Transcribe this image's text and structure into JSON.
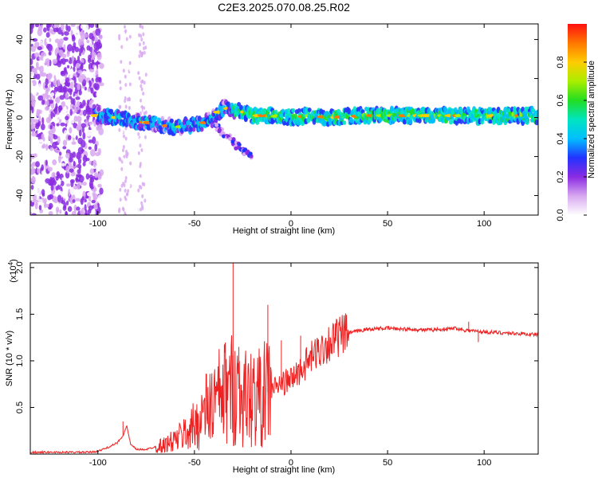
{
  "title": "C2E3.2025.070.08.25.R02",
  "chart_data": [
    {
      "type": "heatmap",
      "xlabel": "Height of straight line (km)",
      "ylabel": "Frequency (Hz)",
      "xlim": [
        -135,
        128
      ],
      "ylim": [
        -50,
        48
      ],
      "x_ticks": [
        -100,
        -50,
        0,
        50,
        100
      ],
      "y_ticks": [
        -40,
        -20,
        0,
        20,
        40
      ],
      "colorbar": {
        "label": "Normalized spectral amplitude",
        "range": [
          0,
          1
        ],
        "ticks": [
          0.0,
          0.2,
          0.4,
          0.6,
          0.8
        ],
        "colors": [
          "#ffffff",
          "#d8a8f0",
          "#8a2be2",
          "#2233ff",
          "#00bfff",
          "#00e5c0",
          "#22dd22",
          "#aaee00",
          "#ffcc00",
          "#ff7700",
          "#ff1010"
        ]
      },
      "band_center": [
        [
          -100,
          1
        ],
        [
          -90,
          0
        ],
        [
          -80,
          -2
        ],
        [
          -70,
          -3
        ],
        [
          -60,
          -5
        ],
        [
          -50,
          -4
        ],
        [
          -45,
          -3
        ],
        [
          -40,
          0
        ],
        [
          -35,
          5
        ],
        [
          -30,
          4
        ],
        [
          -25,
          3
        ],
        [
          -20,
          1
        ],
        [
          -10,
          1
        ],
        [
          0,
          0
        ],
        [
          10,
          1
        ],
        [
          20,
          0
        ],
        [
          40,
          1
        ],
        [
          60,
          1
        ],
        [
          80,
          1
        ],
        [
          100,
          1
        ],
        [
          128,
          1
        ]
      ],
      "branch": [
        [
          -40,
          -3
        ],
        [
          -35,
          -8
        ],
        [
          -30,
          -13
        ],
        [
          -25,
          -17
        ],
        [
          -20,
          -20
        ]
      ]
    },
    {
      "type": "line",
      "xlabel": "Height of straight line (km)",
      "ylabel": "SNR (10 * v/v)",
      "y_multiplier": "(x10",
      "y_exponent": "4",
      "xlim": [
        -135,
        128
      ],
      "ylim": [
        0,
        2.05
      ],
      "x_ticks": [
        -100,
        -50,
        0,
        50,
        100
      ],
      "y_ticks": [
        0.5,
        1.0,
        1.5,
        2.0
      ],
      "line_color": "#ee2222",
      "series": [
        {
          "x": [
            -135,
            -120,
            -105,
            -100,
            -95,
            -90,
            -87,
            -85,
            -83,
            -80,
            -75,
            -70,
            -65,
            -60,
            -55,
            -50,
            -45,
            -40,
            -35,
            -30,
            -28,
            -25,
            -20,
            -15,
            -10,
            -5,
            0,
            5,
            10,
            15,
            20,
            25,
            30,
            35,
            40,
            50,
            60,
            70,
            80,
            85,
            90,
            95,
            100,
            110,
            120,
            128
          ],
          "y": [
            0.02,
            0.02,
            0.02,
            0.03,
            0.07,
            0.12,
            0.2,
            0.3,
            0.1,
            0.05,
            0.05,
            0.08,
            0.1,
            0.15,
            0.22,
            0.3,
            0.45,
            0.55,
            0.65,
            0.7,
            0.75,
            0.6,
            0.6,
            0.62,
            0.7,
            0.75,
            0.8,
            0.9,
            1.02,
            1.12,
            1.2,
            1.26,
            1.3,
            1.32,
            1.34,
            1.35,
            1.34,
            1.33,
            1.34,
            1.35,
            1.33,
            1.32,
            1.31,
            1.3,
            1.29,
            1.28
          ]
        }
      ],
      "spikes": [
        [
          -87,
          0.35
        ],
        [
          -30,
          2.05
        ],
        [
          -27,
          1.15
        ],
        [
          -12,
          1.6
        ],
        [
          -5,
          1.22
        ],
        [
          5,
          1.27
        ],
        [
          92,
          1.42
        ],
        [
          97,
          1.2
        ]
      ]
    }
  ]
}
